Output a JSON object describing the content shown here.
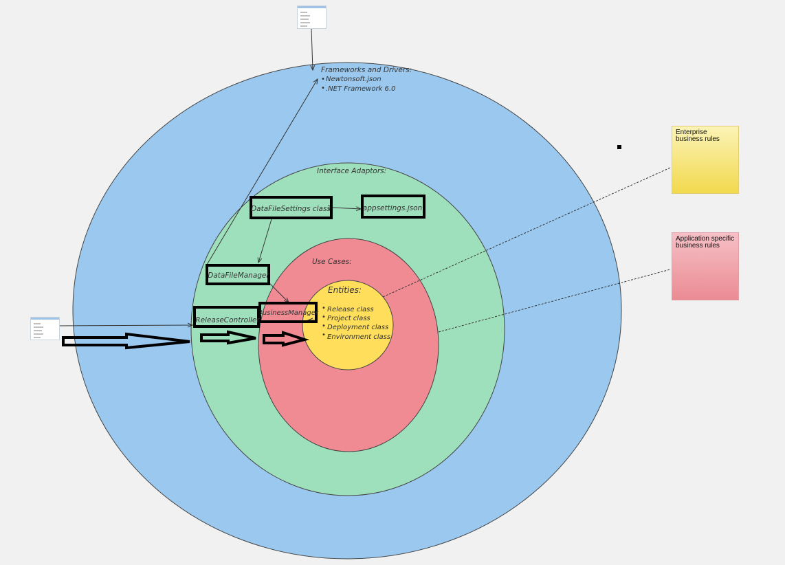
{
  "frameworks": {
    "title": "Frameworks and Drivers:",
    "items": [
      "Newtonsoft.json",
      ".NET Framework 6.0"
    ]
  },
  "interface_adaptors": {
    "title": "Interface Adaptors:"
  },
  "use_cases": {
    "title": "Use Cases:"
  },
  "entities": {
    "title": "Entities:",
    "items": [
      "Release class",
      "Project class",
      "Deployment class",
      "Environment class"
    ]
  },
  "boxes": {
    "datafilesettings": "DataFileSettings class",
    "appsettings": "appsettings.json",
    "datafilemanager": "DataFileManager",
    "businessmanager": "BusinessManager",
    "releasecontroller": "ReleaseController"
  },
  "stickies": {
    "enterprise": "Enterprise business rules",
    "application": "Application specific business rules"
  },
  "colors": {
    "frameworks_ring": "#9ac8ee",
    "interface_ring": "#9fe0bc",
    "use_cases_ring": "#f08a93",
    "entities_ring": "#fede5a"
  }
}
